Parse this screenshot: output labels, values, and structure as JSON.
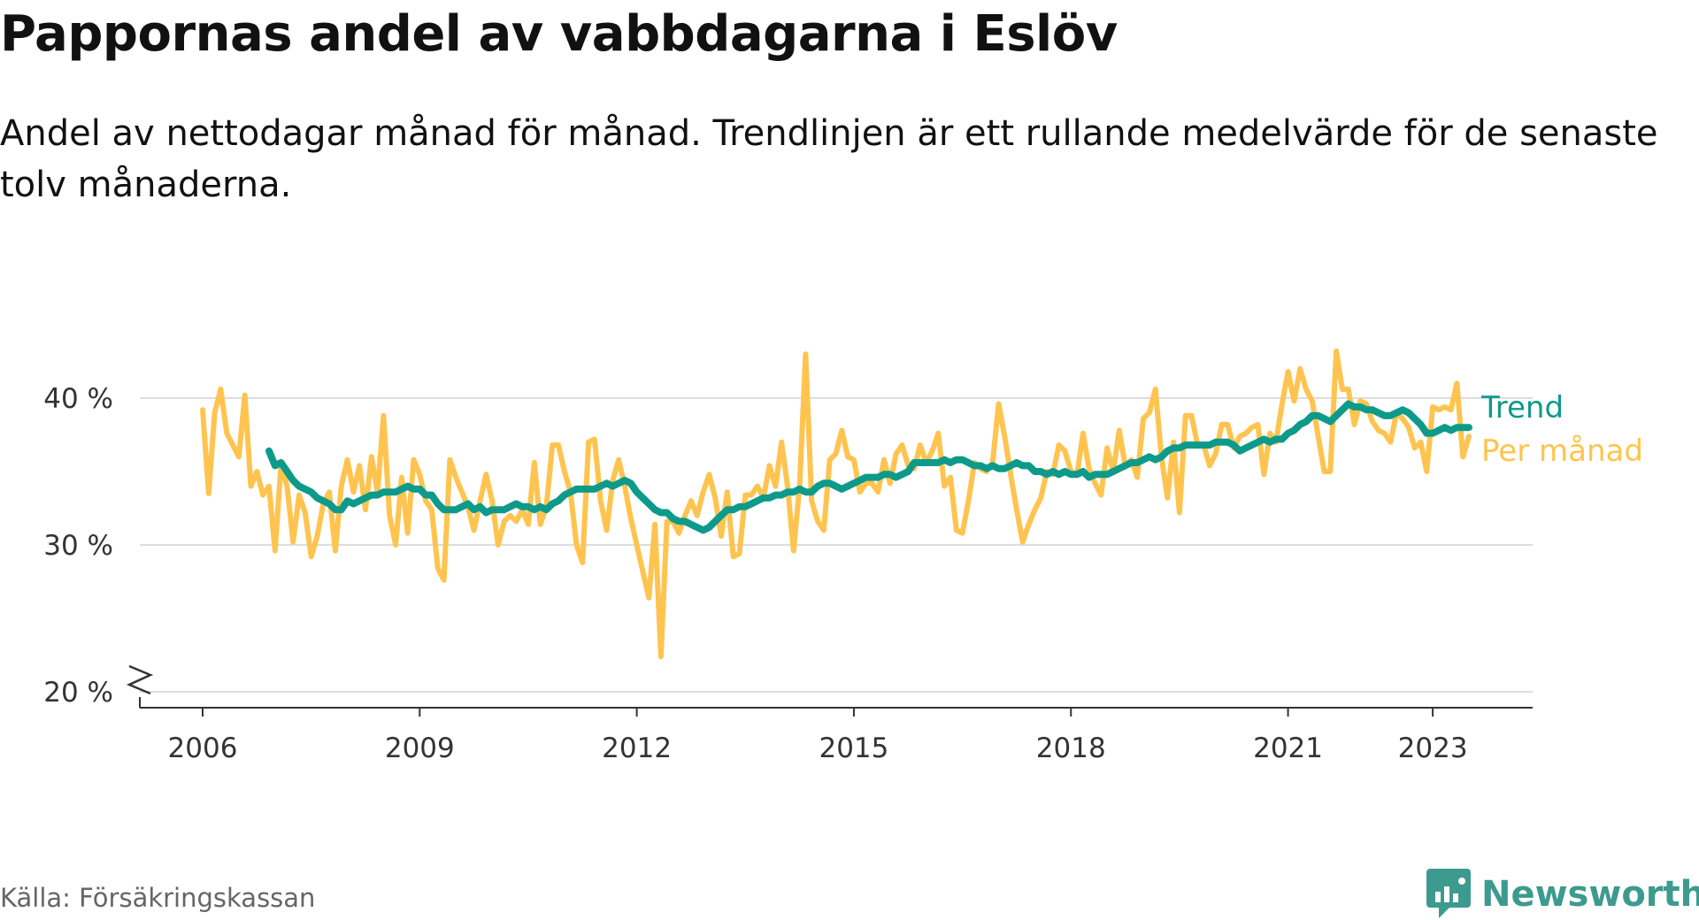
{
  "header": {
    "title": "Pappornas andel av vabbdagarna i Eslöv",
    "subtitle": "Andel av nettodagar månad för månad. Trendlinjen är ett rullande medelvärde för de senaste tolv månaderna."
  },
  "footer": {
    "source": "Källa: Försäkringskassan",
    "brand": "Newsworthy"
  },
  "colors": {
    "trend": "#0e9a8a",
    "monthly": "#ffc44f",
    "grid": "#dddddd",
    "axis": "#333333",
    "brand": "#3d9a8e"
  },
  "chart_data": {
    "type": "line",
    "title": "Pappornas andel av vabbdagarna i Eslöv",
    "subtitle": "Andel av nettodagar månad för månad. Trendlinjen är ett rullande medelvärde för de senaste tolv månaderna.",
    "xlabel": "",
    "ylabel": "",
    "x_start": "2006-01",
    "x_ticks": [
      2006,
      2009,
      2012,
      2015,
      2018,
      2021,
      2023
    ],
    "y_ticks": [
      20,
      30,
      40
    ],
    "y_tick_labels": [
      "20 %",
      "30 %",
      "40 %"
    ],
    "ylim": [
      20,
      44
    ],
    "y_axis_break": true,
    "grid": "horizontal",
    "legend": "direct labels at right end of lines",
    "series": [
      {
        "name": "Per månad",
        "color": "#ffc44f",
        "values": [
          39.2,
          33.5,
          39.0,
          40.6,
          37.6,
          36.8,
          36.0,
          40.2,
          34.0,
          35.0,
          33.4,
          34.0,
          29.6,
          35.5,
          34.0,
          30.2,
          33.4,
          32.2,
          29.2,
          30.6,
          32.8,
          33.6,
          29.6,
          34.0,
          35.8,
          33.6,
          35.4,
          32.4,
          36.0,
          33.6,
          38.8,
          32.0,
          30.0,
          34.6,
          30.8,
          35.8,
          34.8,
          33.0,
          32.4,
          28.4,
          27.6,
          35.8,
          34.6,
          33.6,
          32.6,
          31.0,
          33.0,
          34.8,
          33.0,
          30.0,
          31.6,
          32.0,
          31.6,
          32.4,
          31.4,
          35.6,
          31.4,
          32.6,
          36.8,
          36.8,
          35.0,
          33.6,
          30.0,
          28.8,
          37.0,
          37.2,
          33.0,
          31.0,
          34.4,
          35.8,
          34.0,
          31.8,
          30.0,
          28.2,
          26.4,
          31.4,
          22.4,
          31.6,
          31.6,
          30.8,
          32.0,
          33.0,
          32.0,
          33.6,
          34.8,
          33.2,
          30.6,
          33.6,
          29.2,
          29.4,
          33.4,
          33.4,
          34.0,
          33.2,
          35.4,
          34.0,
          37.0,
          34.0,
          29.6,
          34.0,
          43.0,
          33.0,
          31.6,
          31.0,
          35.8,
          36.2,
          37.8,
          36.0,
          35.8,
          33.6,
          34.2,
          34.2,
          33.6,
          35.8,
          34.2,
          36.2,
          36.8,
          35.4,
          35.2,
          36.8,
          35.6,
          36.4,
          37.6,
          34.0,
          34.6,
          31.0,
          30.8,
          33.0,
          35.6,
          35.2,
          35.0,
          35.6,
          39.6,
          37.4,
          34.8,
          32.4,
          30.2,
          31.4,
          32.4,
          33.2,
          35.0,
          34.8,
          36.8,
          36.4,
          35.0,
          34.8,
          37.6,
          35.2,
          34.2,
          33.4,
          36.6,
          35.0,
          37.8,
          35.4,
          35.8,
          34.6,
          38.6,
          39.0,
          40.6,
          36.0,
          33.2,
          37.0,
          32.2,
          38.8,
          38.8,
          36.8,
          36.8,
          35.4,
          36.2,
          38.2,
          38.2,
          36.6,
          37.4,
          37.6,
          38.0,
          38.2,
          34.8,
          37.6,
          37.0,
          39.6,
          41.8,
          39.8,
          42.0,
          40.6,
          39.8,
          37.4,
          35.0,
          35.0,
          43.2,
          40.6,
          40.6,
          38.2,
          39.8,
          39.6,
          38.4,
          37.8,
          37.6,
          37.0,
          39.0,
          38.6,
          38.0,
          36.6,
          37.0,
          35.0,
          39.4,
          39.2,
          39.4,
          39.2,
          41.0,
          36.0,
          37.4
        ]
      },
      {
        "name": "Trend",
        "color": "#0e9a8a",
        "start_index": 11,
        "values": [
          36.4,
          35.4,
          35.6,
          35.0,
          34.4,
          34.0,
          33.8,
          33.6,
          33.2,
          33.0,
          32.8,
          32.4,
          32.4,
          33.0,
          32.8,
          33.0,
          33.2,
          33.4,
          33.4,
          33.6,
          33.6,
          33.6,
          33.8,
          34.0,
          33.8,
          33.8,
          33.4,
          33.4,
          32.8,
          32.4,
          32.4,
          32.4,
          32.6,
          32.8,
          32.4,
          32.6,
          32.2,
          32.4,
          32.4,
          32.4,
          32.6,
          32.8,
          32.6,
          32.6,
          32.4,
          32.6,
          32.4,
          32.8,
          33.0,
          33.4,
          33.6,
          33.8,
          33.8,
          33.8,
          33.8,
          34.0,
          34.2,
          34.0,
          34.2,
          34.4,
          34.2,
          33.6,
          33.2,
          32.8,
          32.4,
          32.2,
          32.2,
          31.8,
          31.6,
          31.6,
          31.4,
          31.2,
          31.0,
          31.2,
          31.6,
          32.0,
          32.4,
          32.4,
          32.6,
          32.6,
          32.8,
          33.0,
          33.2,
          33.2,
          33.4,
          33.4,
          33.6,
          33.6,
          33.8,
          33.6,
          33.6,
          34.0,
          34.2,
          34.2,
          34.0,
          33.8,
          34.0,
          34.2,
          34.4,
          34.6,
          34.6,
          34.6,
          34.8,
          34.8,
          34.6,
          34.8,
          35.0,
          35.6,
          35.6,
          35.6,
          35.6,
          35.6,
          35.8,
          35.6,
          35.8,
          35.8,
          35.6,
          35.4,
          35.4,
          35.2,
          35.4,
          35.2,
          35.2,
          35.4,
          35.6,
          35.4,
          35.4,
          35.0,
          35.0,
          34.8,
          35.0,
          34.8,
          35.0,
          34.8,
          34.8,
          35.0,
          34.6,
          34.8,
          34.8,
          34.8,
          35.0,
          35.2,
          35.4,
          35.6,
          35.6,
          35.8,
          36.0,
          35.8,
          36.0,
          36.4,
          36.6,
          36.6,
          36.8,
          36.8,
          36.8,
          36.8,
          36.8,
          37.0,
          37.0,
          37.0,
          36.8,
          36.4,
          36.6,
          36.8,
          37.0,
          37.2,
          37.0,
          37.2,
          37.2,
          37.6,
          37.8,
          38.2,
          38.4,
          38.8,
          38.8,
          38.6,
          38.4,
          38.8,
          39.2,
          39.6,
          39.4,
          39.4,
          39.2,
          39.2,
          39.0,
          38.8,
          38.8,
          39.0,
          39.2,
          39.0,
          38.6,
          38.2,
          37.6,
          37.6,
          37.8,
          38.0,
          37.8,
          38.0,
          38.0,
          38.0
        ]
      }
    ]
  }
}
